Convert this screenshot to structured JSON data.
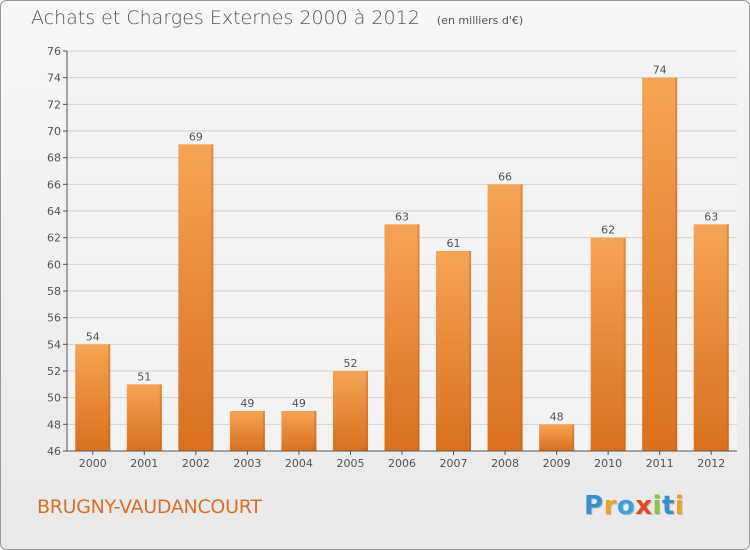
{
  "title": "Achats et Charges Externes 2000 à 2012",
  "unit": "(en milliers d'€)",
  "commune": "BRUGNY-VAUDANCOURT",
  "brand": {
    "text": "Proxiti",
    "letters": [
      "P",
      "r",
      "o",
      "x",
      "i",
      "t",
      "i"
    ],
    "colors": [
      "#3a8fd0",
      "#e8a227",
      "#3ba0d8",
      "#e04b2d",
      "#8bc43f",
      "#3a8fd0",
      "#e8a227"
    ]
  },
  "colors": {
    "bar_top": "#f5a455",
    "bar_bottom": "#d9701d",
    "grid": "#d2d2d2",
    "axis": "#555555",
    "text": "#555555",
    "commune": "#d9702a"
  },
  "chart_data": {
    "type": "bar",
    "categories": [
      "2000",
      "2001",
      "2002",
      "2003",
      "2004",
      "2005",
      "2006",
      "2007",
      "2008",
      "2009",
      "2010",
      "2011",
      "2012"
    ],
    "values": [
      54,
      51,
      69,
      49,
      49,
      52,
      63,
      61,
      66,
      48,
      62,
      74,
      63
    ],
    "value_labels": [
      "54",
      "51",
      "69",
      "49",
      "49",
      "52",
      "63",
      "61",
      "66",
      "48",
      "62",
      "74",
      "63"
    ],
    "title": "Achats et Charges Externes 2000 à 2012",
    "ylim": [
      46,
      76
    ],
    "yticks": [
      46,
      48,
      50,
      52,
      54,
      56,
      58,
      60,
      62,
      64,
      66,
      68,
      70,
      72,
      74,
      76
    ],
    "grid": true
  }
}
